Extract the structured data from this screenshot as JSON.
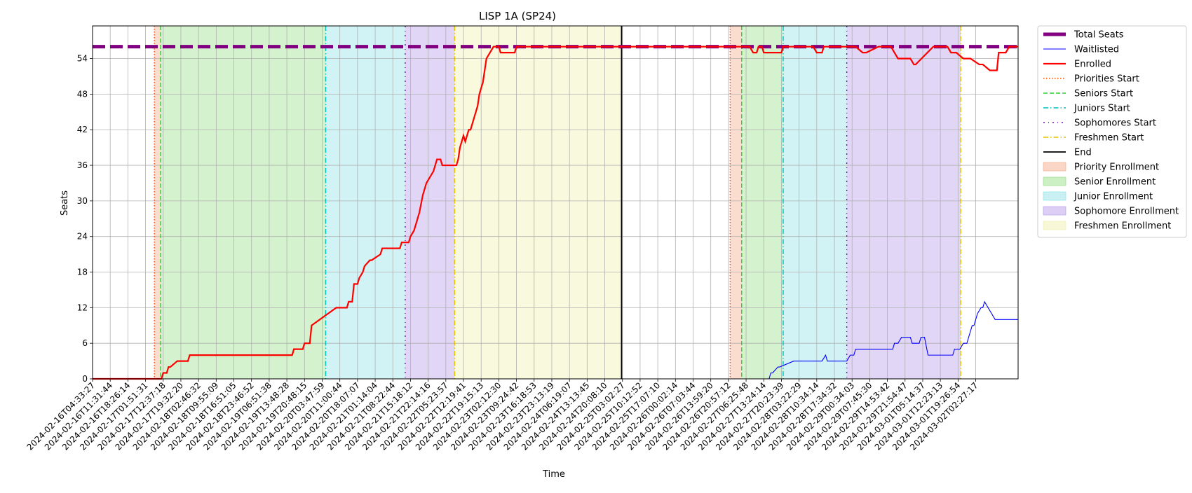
{
  "chart_data": {
    "type": "line",
    "title": "LISP 1A (SP24)",
    "xlabel": "Time",
    "ylabel": "Seats",
    "ylim": [
      0,
      59.5
    ],
    "y_ticks": [
      0,
      6,
      12,
      18,
      24,
      30,
      36,
      42,
      48,
      54
    ],
    "grid": true,
    "legend_placement": "outside-top-right",
    "x_ticks": [
      "2024-02-16T04:33:27",
      "2024-02-16T11:31:44",
      "2024-02-16T18:26:14",
      "2024-02-17T01:51:31",
      "2024-02-17T12:37:18",
      "2024-02-17T19:32:20",
      "2024-02-18T02:46:32",
      "2024-02-18T09:55:09",
      "2024-02-18T16:51:05",
      "2024-02-18T23:46:52",
      "2024-02-19T06:51:38",
      "2024-02-19T13:48:28",
      "2024-02-19T20:48:15",
      "2024-02-20T03:47:59",
      "2024-02-20T11:00:44",
      "2024-02-20T18:07:07",
      "2024-02-21T01:14:04",
      "2024-02-21T08:22:44",
      "2024-02-21T15:18:12",
      "2024-02-21T22:14:16",
      "2024-02-22T05:23:57",
      "2024-02-22T12:19:41",
      "2024-02-22T19:15:13",
      "2024-02-23T02:12:30",
      "2024-02-23T09:24:42",
      "2024-02-23T16:18:53",
      "2024-02-23T23:13:19",
      "2024-02-24T06:19:07",
      "2024-02-24T13:13:45",
      "2024-02-24T20:08:10",
      "2024-02-25T03:02:27",
      "2024-02-25T10:12:52",
      "2024-02-25T17:07:10",
      "2024-02-26T00:02:14",
      "2024-02-26T07:03:44",
      "2024-02-26T13:59:20",
      "2024-02-26T20:57:12",
      "2024-02-27T06:25:48",
      "2024-02-27T13:24:14",
      "2024-02-27T20:23:39",
      "2024-02-28T03:22:29",
      "2024-02-28T10:34:14",
      "2024-02-28T17:34:32",
      "2024-02-29T00:34:03",
      "2024-02-29T07:45:30",
      "2024-02-29T14:53:42",
      "2024-02-29T21:54:47",
      "2024-03-01T05:14:37",
      "2024-03-01T12:23:13",
      "2024-03-01T19:26:54",
      "2024-03-02T02:27:17"
    ],
    "x_range": [
      0,
      52.4
    ],
    "series": [
      {
        "name": "Total Seats",
        "color": "#800080",
        "style": "dashed-thick",
        "x": [
          0,
          52.4
        ],
        "y": [
          56,
          56
        ]
      },
      {
        "name": "Waitlisted",
        "color": "#0000ff",
        "style": "solid-thin",
        "x": [
          0,
          38.3,
          38.4,
          38.5,
          38.8,
          38.9,
          39.7,
          39.8,
          40.3,
          40.5,
          41.3,
          41.5,
          41.6,
          42.7,
          42.9,
          43.1,
          43.2,
          43.6,
          43.8,
          45.3,
          45.4,
          45.6,
          45.8,
          46.3,
          46.4,
          46.8,
          46.9,
          47.1,
          47.3,
          48.7,
          48.8,
          49.1,
          49.3,
          49.5,
          49.6,
          49.7,
          49.8,
          49.9,
          50.0,
          50.1,
          50.3,
          50.4,
          50.5,
          51.1,
          52.4
        ],
        "y": [
          0,
          0,
          1,
          1,
          2,
          2,
          3,
          3,
          3,
          3,
          3,
          4,
          3,
          3,
          4,
          4,
          5,
          5,
          5,
          5,
          6,
          6,
          7,
          7,
          6,
          6,
          7,
          7,
          4,
          4,
          5,
          5,
          6,
          6,
          7,
          8,
          9,
          9,
          10,
          11,
          12,
          12,
          13,
          10,
          10
        ]
      },
      {
        "name": "Enrolled",
        "color": "#ff0000",
        "style": "solid-thick",
        "x": [
          0,
          3.9,
          4.0,
          4.2,
          4.3,
          4.4,
          4.8,
          5.4,
          5.5,
          10.7,
          10.8,
          11.3,
          11.4,
          11.9,
          12.0,
          12.3,
          12.4,
          13.8,
          13.9,
          14.4,
          14.5,
          14.7,
          14.8,
          15.0,
          15.1,
          15.3,
          15.4,
          15.7,
          15.8,
          16.3,
          16.4,
          17.4,
          17.5,
          17.9,
          18.0,
          18.2,
          18.3,
          18.4,
          18.5,
          18.7,
          18.8,
          18.9,
          19.1,
          19.3,
          19.4,
          19.5,
          19.7,
          19.8,
          20.5,
          20.6,
          20.7,
          20.8,
          21.0,
          21.1,
          21.3,
          21.4,
          21.6,
          21.7,
          21.8,
          21.9,
          22.1,
          22.2,
          22.3,
          22.7,
          23.0,
          23.1,
          23.9,
          24.0,
          25.5,
          26.2,
          30.0,
          37.1,
          37.2,
          37.4,
          37.6,
          37.7,
          37.9,
          38.0,
          39.0,
          39.1,
          40.8,
          41.0,
          41.3,
          41.4,
          41.6,
          42.1,
          42.3,
          43.2,
          43.6,
          43.8,
          44.5,
          45.2,
          45.6,
          46.3,
          46.5,
          46.6,
          47.6,
          48.4,
          48.6,
          48.9,
          49.3,
          49.7,
          50.2,
          50.4,
          50.8,
          51.2,
          51.3,
          51.7,
          51.9,
          52.4
        ],
        "y": [
          0,
          0,
          1,
          1,
          2,
          2,
          3,
          3,
          4,
          4,
          4,
          4,
          5,
          5,
          6,
          6,
          9,
          12,
          12,
          12,
          13,
          13,
          16,
          16,
          17,
          18,
          19,
          20,
          20,
          21,
          22,
          22,
          23,
          23,
          24,
          25,
          26,
          27,
          28,
          31,
          32,
          33,
          34,
          35,
          36,
          37,
          37,
          36,
          36,
          36,
          37,
          39,
          41,
          40,
          42,
          42,
          44,
          45,
          46,
          48,
          50,
          52,
          54,
          56,
          56,
          55,
          55,
          56,
          56,
          56,
          56,
          56,
          56,
          55,
          55,
          56,
          56,
          55,
          55,
          56,
          56,
          55,
          55,
          56,
          56,
          56,
          56,
          56,
          55,
          55,
          56,
          56,
          54,
          54,
          53,
          53,
          56,
          56,
          55,
          55,
          54,
          54,
          53,
          53,
          52,
          52,
          55,
          55,
          56,
          56
        ]
      }
    ],
    "vertical_markers": [
      {
        "name": "Priorities Start",
        "color": "#ff4500",
        "style": "dotted",
        "x": [
          3.5,
          36.1
        ]
      },
      {
        "name": "Seniors Start",
        "color": "#32cd32",
        "style": "dashed",
        "x": [
          3.85,
          36.75
        ]
      },
      {
        "name": "Juniors Start",
        "color": "#00bfbf",
        "style": "dashdot",
        "x": [
          13.2,
          39.1
        ]
      },
      {
        "name": "Sophomores Start",
        "color": "#6a0dad",
        "style": "densedashdot",
        "x": [
          17.7,
          42.7
        ]
      },
      {
        "name": "Freshmen Start",
        "color": "#e5c100",
        "style": "dashdot",
        "x": [
          20.5,
          49.15
        ]
      },
      {
        "name": "End",
        "color": "#000000",
        "style": "solid",
        "x": [
          29.95
        ]
      }
    ],
    "shaded_regions": [
      {
        "name": "Priority Enrollment",
        "color": "#f4a582",
        "ranges": [
          [
            3.5,
            3.85
          ],
          [
            36.1,
            36.75
          ]
        ]
      },
      {
        "name": "Senior Enrollment",
        "color": "#8fdc7c",
        "ranges": [
          [
            3.85,
            13.2
          ],
          [
            36.75,
            39.1
          ]
        ]
      },
      {
        "name": "Junior Enrollment",
        "color": "#87dfe6",
        "ranges": [
          [
            13.2,
            17.7
          ],
          [
            39.1,
            42.7
          ]
        ]
      },
      {
        "name": "Sophomore Enrollment",
        "color": "#b193e8",
        "ranges": [
          [
            17.7,
            20.5
          ],
          [
            42.7,
            49.15
          ]
        ]
      },
      {
        "name": "Freshmen Enrollment",
        "color": "#efefa8",
        "ranges": [
          [
            20.5,
            29.95
          ]
        ]
      }
    ],
    "legend": [
      "Total Seats",
      "Waitlisted",
      "Enrolled",
      "Priorities Start",
      "Seniors Start",
      "Juniors Start",
      "Sophomores Start",
      "Freshmen Start",
      "End",
      "Priority Enrollment",
      "Senior Enrollment",
      "Junior Enrollment",
      "Sophomore Enrollment",
      "Freshmen Enrollment"
    ]
  }
}
